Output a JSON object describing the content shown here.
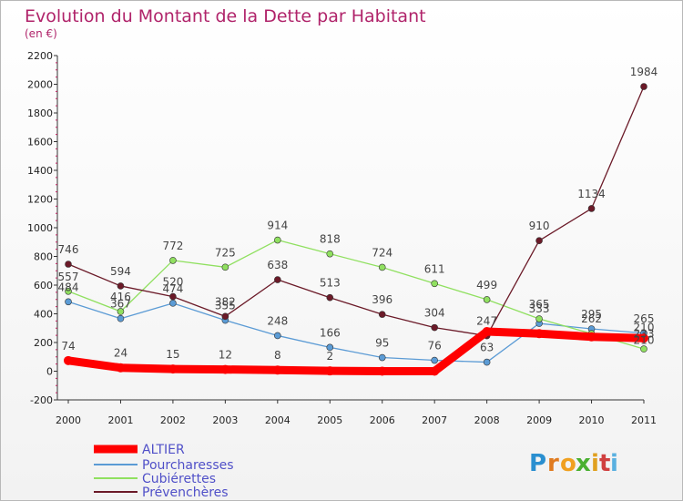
{
  "chart_data": {
    "type": "line",
    "title": "Evolution du Montant de la Dette par Habitant",
    "subtitle": "(en €)",
    "x": [
      "2000",
      "2001",
      "2002",
      "2003",
      "2004",
      "2005",
      "2006",
      "2007",
      "2008",
      "2009",
      "2010",
      "2011"
    ],
    "ylim": [
      -200,
      2200
    ],
    "yticks": [
      "-200",
      "0",
      "200",
      "400",
      "600",
      "800",
      "1000",
      "1200",
      "1400",
      "1600",
      "1800",
      "2000",
      "2200"
    ],
    "grid": false,
    "legend_position": "bottom-left",
    "series": [
      {
        "name": "ALTIER",
        "color": "#ff0000",
        "values": [
          74,
          24,
          15,
          12,
          8,
          2,
          0,
          0,
          276,
          262,
          240,
          230
        ],
        "labels": [
          "74",
          "24",
          "15",
          "12",
          "8",
          "2",
          "",
          "",
          "",
          "",
          "",
          ""
        ]
      },
      {
        "name": "Pourcharesses",
        "color": "#5b9bd5",
        "values": [
          484,
          367,
          474,
          355,
          248,
          166,
          95,
          76,
          63,
          333,
          295,
          265
        ],
        "labels": [
          "484",
          "367",
          "474",
          "355",
          "248",
          "166",
          "95",
          "76",
          "63",
          "333",
          "295",
          "265"
        ]
      },
      {
        "name": "Cubiérettes",
        "color": "#90e060",
        "values": [
          557,
          416,
          772,
          725,
          914,
          818,
          724,
          611,
          499,
          365,
          262,
          155
        ],
        "labels": [
          "557",
          "416",
          "772",
          "725",
          "914",
          "818",
          "724",
          "611",
          "499",
          "365",
          "262",
          ""
        ]
      },
      {
        "name": "Prévenchères",
        "color": "#6b1a28",
        "values": [
          746,
          594,
          520,
          382,
          638,
          513,
          396,
          304,
          247,
          910,
          1134,
          1984
        ],
        "labels": [
          "746",
          "594",
          "520",
          "382",
          "638",
          "513",
          "396",
          "304",
          "247",
          "910",
          "1134",
          "1984"
        ]
      }
    ]
  },
  "extra_labels": [
    "210",
    "233",
    "210"
  ],
  "logo": {
    "text": "Proxiti",
    "letters": [
      "P",
      "r",
      "o",
      "x",
      "i",
      "t",
      "i"
    ]
  }
}
